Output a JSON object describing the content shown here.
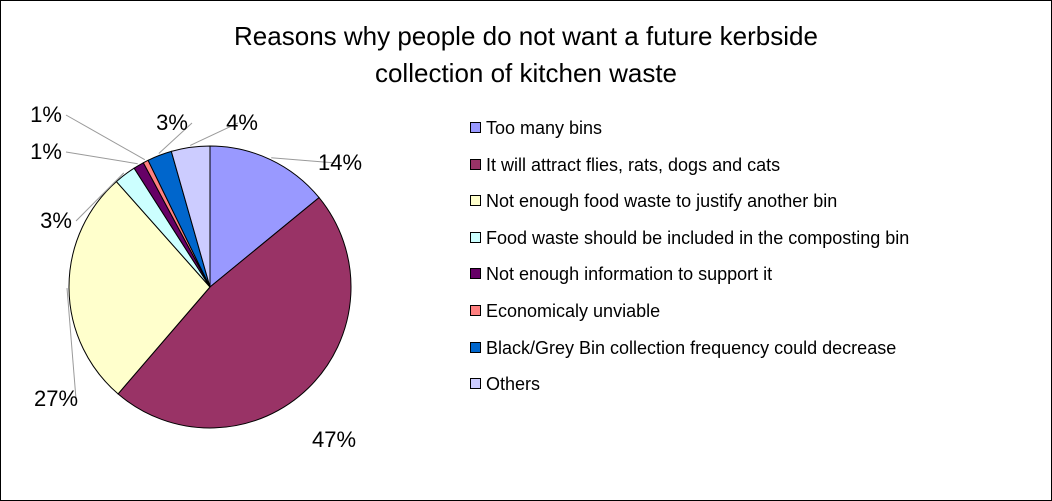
{
  "chart_data": {
    "type": "pie",
    "title": "Reasons why people do not want a future kerbside collection of kitchen waste",
    "title_lines": [
      "Reasons why people do not want a future kerbside",
      "collection of kitchen waste"
    ],
    "legend_position": "right",
    "slices": [
      {
        "label": "Too many bins",
        "value": 14,
        "display": "14%",
        "color": "#9999FF"
      },
      {
        "label": "It will attract flies, rats, dogs and cats",
        "value": 47,
        "display": "47%",
        "color": "#993366"
      },
      {
        "label": "Not enough food waste to justify another bin",
        "value": 27,
        "display": "27%",
        "color": "#FFFFCC"
      },
      {
        "label": "Food waste should be included in the composting bin",
        "value": 2.5,
        "display": "3%",
        "color": "#CCFFFF"
      },
      {
        "label": "Not enough information to support it",
        "value": 1.2,
        "display": "1%",
        "color": "#660066"
      },
      {
        "label": "Economicaly unviable",
        "value": 0.6,
        "display": "1%",
        "color": "#FF8080"
      },
      {
        "label": "Black/Grey Bin collection frequency could decrease",
        "value": 2.8,
        "display": "3%",
        "color": "#0066CC"
      },
      {
        "label": "Others",
        "value": 4.4,
        "display": "4%",
        "color": "#CCCCFF"
      }
    ]
  }
}
